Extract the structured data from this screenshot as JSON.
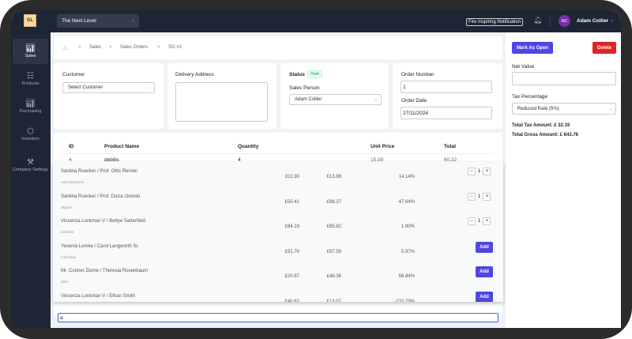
{
  "app": {
    "logo": "GL",
    "org": "The Next Level",
    "notification_button": "Fire Inspiring Notification",
    "user_initials": "AC",
    "user_name": "Adam Collier"
  },
  "sidebar": {
    "items": [
      {
        "label": "Sales",
        "icon": "chart-icon"
      },
      {
        "label": "Products",
        "icon": "grid-icon"
      },
      {
        "label": "Purchasing",
        "icon": "chart-icon"
      },
      {
        "label": "Inventory",
        "icon": "box-icon"
      },
      {
        "label": "Company Settings",
        "icon": "tools-icon"
      }
    ]
  },
  "breadcrumb": [
    "Sales",
    "Sales Orders",
    "SO #1"
  ],
  "form": {
    "customer_label": "Customer",
    "customer_value": "Select Customer",
    "delivery_label": "Delivery Address",
    "delivery_value": "",
    "status_label": "Status",
    "status_badge": "Draft",
    "salesperson_label": "Sales Person",
    "salesperson_value": "Adam Collier",
    "order_number_label": "Order Number",
    "order_number": "1",
    "order_date_label": "Order Date",
    "order_date": "27/11/2024"
  },
  "table": {
    "headers": [
      "ID",
      "Product Name",
      "Quantity",
      "Unit Price",
      "Total"
    ],
    "rows": [
      {
        "id": "4",
        "name": "debitis",
        "qty": "4",
        "price": "15.08",
        "total": "60.32"
      }
    ]
  },
  "dropdown": {
    "add_label": "Add",
    "options": [
      {
        "name": "Santina Ruecker / Prof. Ottis Renner",
        "sub": "exercitationem",
        "cost": "£11.90",
        "price": "£13.86",
        "margin": "14.14%",
        "qty": "1"
      },
      {
        "name": "Santina Ruecker / Prof. Dulce Osinski",
        "sub": "aliquid",
        "cost": "£50.41",
        "price": "£96.27",
        "margin": "47.64%",
        "qty": "1"
      },
      {
        "name": "Vincenza Lockman V / Bettye Satterfield",
        "sub": "dolorem",
        "cost": "£84.19",
        "price": "£85.82",
        "margin": "1.90%",
        "qty": "1"
      },
      {
        "name": "Yesenia Lemke / Carol Langworth Sr.",
        "sub": "molestias",
        "cost": "£91.76",
        "price": "£97.59",
        "margin": "5.97%",
        "qty": null
      },
      {
        "name": "Mr. Conner Zieme / Theresia Rosenbaum",
        "sub": "dolor",
        "cost": "£20.87",
        "price": "£48.36",
        "margin": "56.84%",
        "qty": null
      },
      {
        "name": "Vincenza Lockman V / Ethan Smith",
        "sub": "",
        "cost": "£40.62",
        "price": "£13.07",
        "margin": "-210.79%",
        "qty": null
      }
    ]
  },
  "search": {
    "value": "a"
  },
  "panel": {
    "mark_open": "Mark As Open",
    "delete": "Delete",
    "net_value_label": "Net Value",
    "net_value": "",
    "tax_label": "Tax Percentage",
    "tax_value": "Reduced Rate (5%)",
    "total_tax": "Total Tax Amount: £ 32.19",
    "total_gross": "Total Gross Amount: £ 643.76"
  },
  "colors": {
    "primary": "#4f46e5",
    "danger": "#dc2626",
    "sidebar": "#1e2636",
    "draft": "#16a34a"
  }
}
